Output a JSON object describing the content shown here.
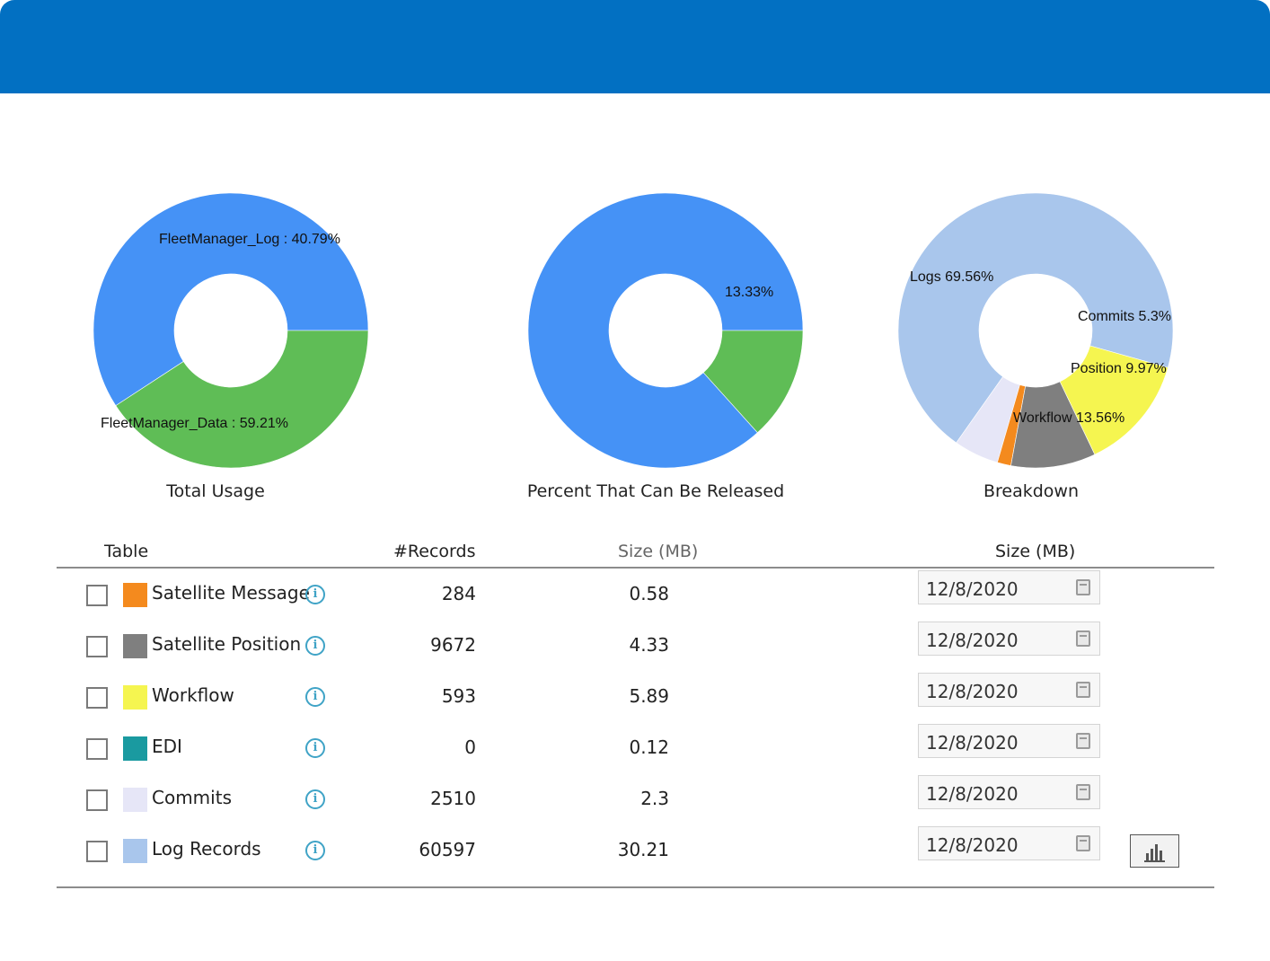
{
  "header": {
    "color": "#0270c2"
  },
  "charts": [
    {
      "title": "Total Usage",
      "slices": [
        {
          "label": "FleetManager_Data : 59.21%",
          "percent": 59.21,
          "color": "#4592f6"
        },
        {
          "label": "FleetManager_Log : 40.79%",
          "percent": 40.79,
          "color": "#5fbd56"
        }
      ]
    },
    {
      "title": "Percent That Can Be Released",
      "slices": [
        {
          "label": "",
          "percent": 86.67,
          "color": "#4592f6"
        },
        {
          "label": "13.33%",
          "percent": 13.33,
          "color": "#5fbd56"
        }
      ]
    },
    {
      "title": "Breakdown",
      "slices": [
        {
          "label": "Logs 69.56%",
          "percent": 69.56,
          "color": "#a9c6ec"
        },
        {
          "label": "Commits 5.3%",
          "percent": 5.3,
          "color": "#e6e6f7"
        },
        {
          "label": "",
          "percent": 1.61,
          "color": "#f48a1e"
        },
        {
          "label": "Position 9.97%",
          "percent": 9.97,
          "color": "#7f7f7f"
        },
        {
          "label": "Workflow 13.56%",
          "percent": 13.56,
          "color": "#f5f550"
        }
      ]
    }
  ],
  "table": {
    "headers": {
      "table": "Table",
      "records": "#Records",
      "size": "Size (MB)",
      "size2": "Size (MB)"
    },
    "rows": [
      {
        "name": "Satellite Message",
        "color": "#f48a1e",
        "records": "284",
        "size": "0.58",
        "date": "12/8/2020"
      },
      {
        "name": "Satellite Position",
        "color": "#7f7f7f",
        "records": "9672",
        "size": "4.33",
        "date": "12/8/2020"
      },
      {
        "name": "Workflow",
        "color": "#f5f550",
        "records": "593",
        "size": "5.89",
        "date": "12/8/2020"
      },
      {
        "name": "EDI",
        "color": "#1a9aa0",
        "records": "0",
        "size": "0.12",
        "date": "12/8/2020"
      },
      {
        "name": "Commits",
        "color": "#e6e6f7",
        "records": "2510",
        "size": "2.3",
        "date": "12/8/2020"
      },
      {
        "name": "Log Records",
        "color": "#a9c6ec",
        "records": "60597",
        "size": "30.21",
        "date": "12/8/2020"
      }
    ]
  },
  "icons": {
    "info": "i",
    "calendar": "calendar-icon",
    "chart_button": "bar-chart-icon"
  }
}
